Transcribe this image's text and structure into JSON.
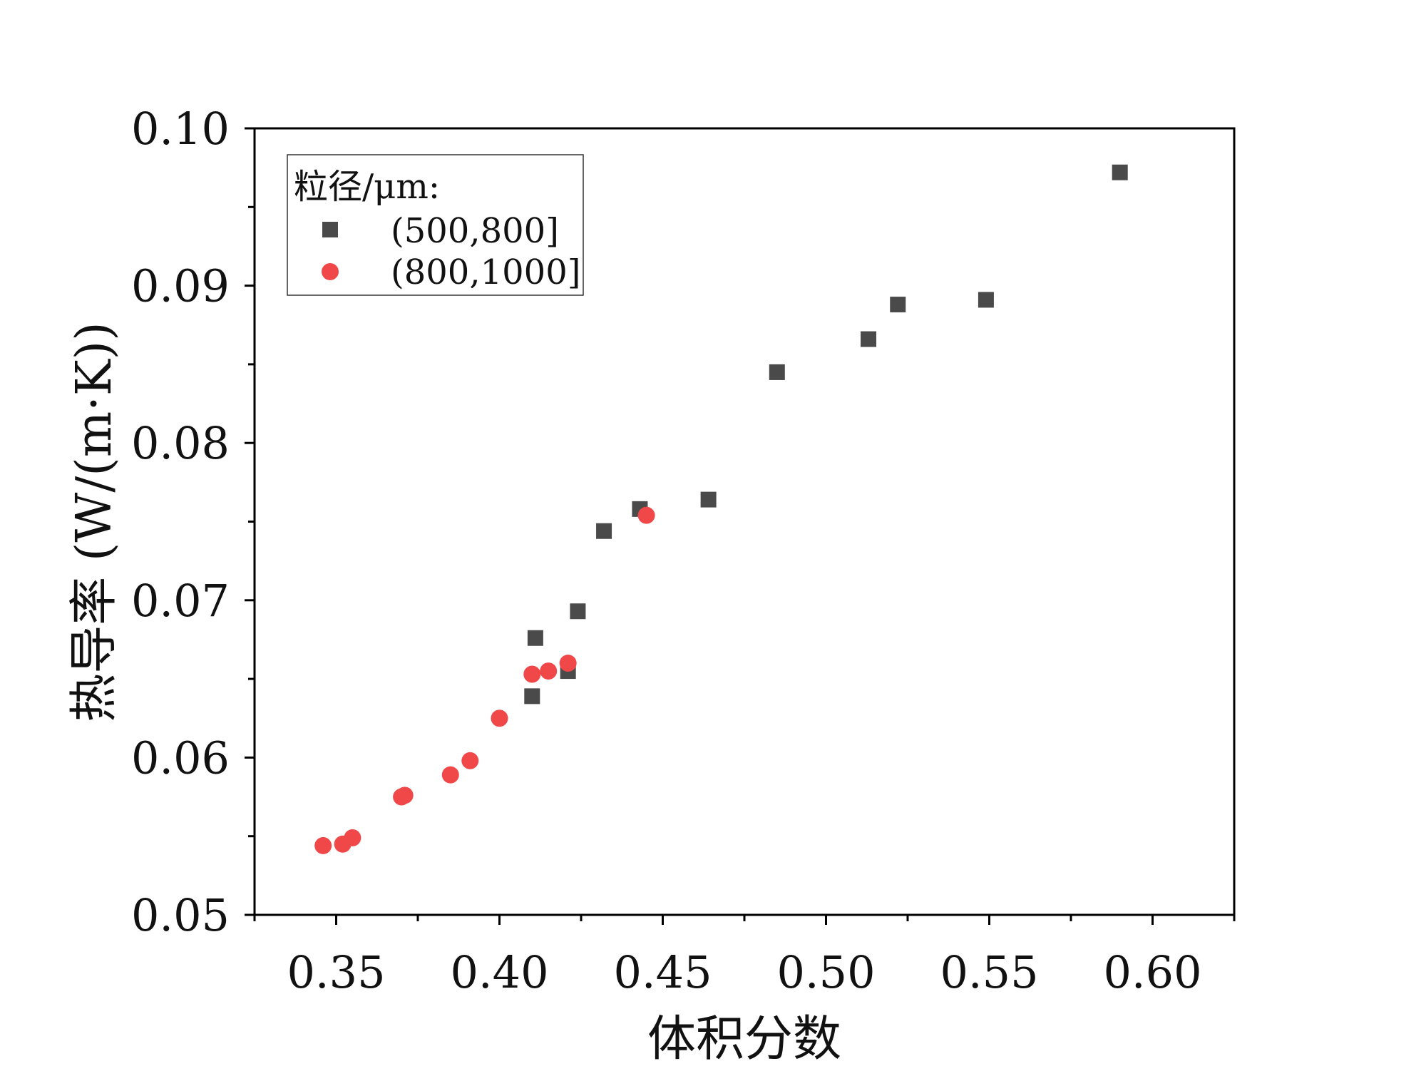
{
  "chart_data": {
    "type": "scatter",
    "xlabel": "体积分数",
    "ylabel": "热导率 (W/(m·K))",
    "xlim": [
      0.325,
      0.625
    ],
    "ylim": [
      0.05,
      0.1
    ],
    "xticks": [
      0.35,
      0.4,
      0.45,
      0.5,
      0.55,
      0.6
    ],
    "xtick_labels": [
      "0.35",
      "0.40",
      "0.45",
      "0.50",
      "0.55",
      "0.60"
    ],
    "yticks": [
      0.05,
      0.06,
      0.07,
      0.08,
      0.09,
      0.1
    ],
    "ytick_labels": [
      "0.05",
      "0.06",
      "0.07",
      "0.08",
      "0.09",
      "0.10"
    ],
    "grid": false,
    "legend": {
      "title": "粒径/μm:",
      "placement": "top-left"
    },
    "series": [
      {
        "name": "(500,800]",
        "marker": "square",
        "color": "#4a4a4a",
        "x": [
          0.41,
          0.411,
          0.421,
          0.424,
          0.432,
          0.443,
          0.464,
          0.485,
          0.513,
          0.522,
          0.549,
          0.59
        ],
        "y": [
          0.0639,
          0.0676,
          0.0655,
          0.0693,
          0.0744,
          0.0758,
          0.0764,
          0.0845,
          0.0866,
          0.0888,
          0.0891,
          0.0972
        ]
      },
      {
        "name": "(800,1000]",
        "marker": "circle",
        "color": "#f04848",
        "x": [
          0.346,
          0.352,
          0.355,
          0.37,
          0.371,
          0.385,
          0.391,
          0.4,
          0.41,
          0.415,
          0.421,
          0.445
        ],
        "y": [
          0.0544,
          0.0545,
          0.0549,
          0.0575,
          0.0576,
          0.0589,
          0.0598,
          0.0625,
          0.0653,
          0.0655,
          0.066,
          0.0754
        ]
      }
    ]
  }
}
